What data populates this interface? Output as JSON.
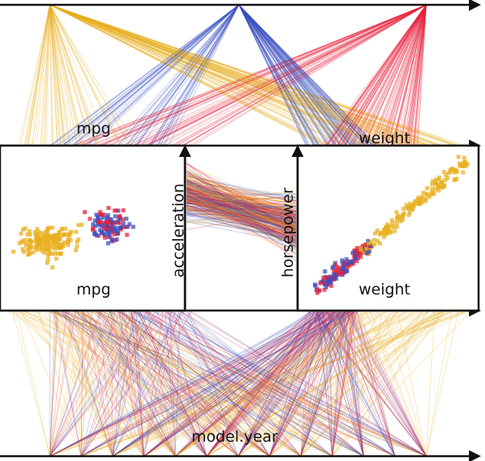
{
  "chart_data": {
    "type": "scatter",
    "title": "",
    "colors": {
      "origin_1": "#e8b020",
      "origin_2": "#3a4fc0",
      "origin_3": "#e8203a",
      "axis": "#111111"
    },
    "axes": {
      "top_1d": {
        "left_label": "mpg",
        "right_label": "weight"
      },
      "middle_2d_left": {
        "xlabel": "mpg",
        "ylabel": "acceleration"
      },
      "middle_2d_right": {
        "xlabel": "weight",
        "ylabel": "horsepower"
      },
      "bottom_1d": {
        "label": "model.year"
      }
    },
    "series": [
      {
        "color_key": "origin_1"
      },
      {
        "color_key": "origin_2"
      },
      {
        "color_key": "origin_3"
      }
    ],
    "grid": false,
    "legend": "none"
  }
}
